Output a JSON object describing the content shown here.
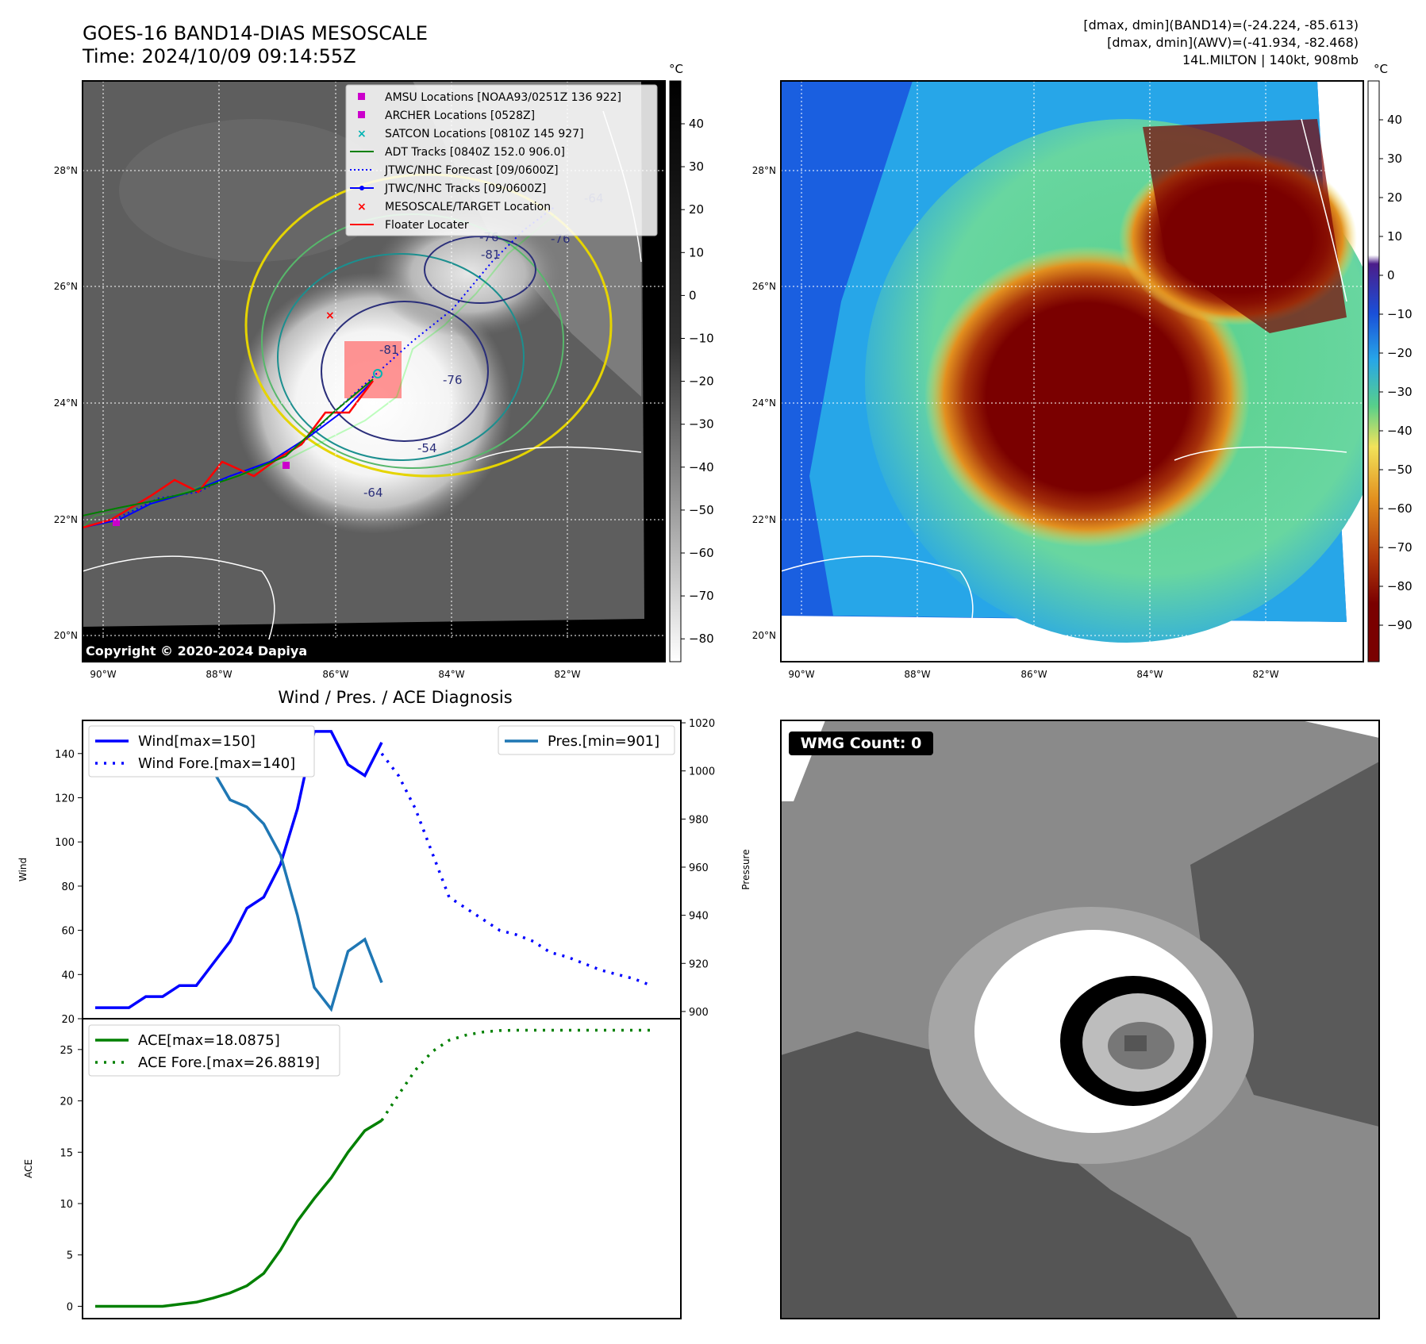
{
  "header": {
    "title_line1": "GOES-16 BAND14-DIAS MESOSCALE",
    "title_line2": "Time: 2024/10/09 09:14:55Z",
    "info_line1": "[dmax, dmin](BAND14)=(-24.224, -85.613)",
    "info_line2": "[dmax, dmin](AWV)=(-41.934, -82.468)",
    "info_line3": "14L.MILTON | 140kt, 908mb"
  },
  "map": {
    "lat_ticks": [
      "28°N",
      "26°N",
      "24°N",
      "22°N",
      "20°N"
    ],
    "lon_ticks": [
      "90°W",
      "88°W",
      "86°W",
      "84°W",
      "82°W"
    ],
    "copyright": "Copyright © 2020-2024 Dapiya",
    "contour_labels": [
      "-64",
      "-76",
      "-81",
      "-81",
      "-76",
      "-54",
      "-64",
      "-76"
    ],
    "storm_colors": {
      "ir_core": "#ffffff",
      "awv_core": "#7a0000",
      "awv_ring": "#e2901f",
      "awv_env": "#58d08a",
      "awv_edge": "#27a6e8"
    },
    "legend": [
      {
        "label": "AMSU Locations [NOAA93/0251Z 136 922]",
        "color": "#cc00cc",
        "marker": "square"
      },
      {
        "label": "ARCHER Locations [0528Z]",
        "color": "#cc00cc",
        "marker": "square"
      },
      {
        "label": "SATCON Locations [0810Z 145 927]",
        "color": "#00b3b3",
        "marker": "x"
      },
      {
        "label": "ADT Tracks [0840Z 152.0 906.0]",
        "color": "#008000",
        "marker": "line"
      },
      {
        "label": "JTWC/NHC Forecast [09/0600Z]",
        "color": "#0000ff",
        "marker": "dotted"
      },
      {
        "label": "JTWC/NHC Tracks [09/0600Z]",
        "color": "#0000ff",
        "marker": "line-dot"
      },
      {
        "label": "MESOSCALE/TARGET Location",
        "color": "#ff0000",
        "marker": "x"
      },
      {
        "label": "Floater Locater",
        "color": "#ff0000",
        "marker": "line"
      }
    ]
  },
  "colorbar_ir": {
    "unit": "°C",
    "ticks": [
      "40",
      "30",
      "20",
      "10",
      "0",
      "−10",
      "−20",
      "−30",
      "−40",
      "−50",
      "−60",
      "−70",
      "−80"
    ]
  },
  "colorbar_awv": {
    "unit": "°C",
    "ticks": [
      "40",
      "30",
      "20",
      "10",
      "0",
      "−10",
      "−20",
      "−30",
      "−40",
      "−50",
      "−60",
      "−70",
      "−80",
      "−90"
    ]
  },
  "chart_data": [
    {
      "type": "line",
      "title": "Wind / Pres. / ACE Diagnosis",
      "ylabel": "Wind",
      "ylabel_right": "Pressure",
      "ylim": [
        20,
        155
      ],
      "ylim_right": [
        897,
        1021
      ],
      "yticks": [
        "140",
        "120",
        "100",
        "80",
        "60",
        "40",
        "20"
      ],
      "yticks_right": [
        "1020",
        "1000",
        "980",
        "960",
        "940",
        "920",
        "900"
      ],
      "legend_left": [
        "Wind[max=150]",
        "Wind Fore.[max=140]"
      ],
      "legend_right": [
        "Pres.[min=901]"
      ],
      "series": [
        {
          "name": "Wind[max=150]",
          "color": "#0000ff",
          "style": "solid",
          "x": [
            0,
            1,
            2,
            3,
            4,
            5,
            6,
            7,
            8,
            9,
            10,
            11,
            12,
            13,
            14,
            15,
            16,
            17
          ],
          "values": [
            25,
            25,
            25,
            30,
            30,
            35,
            35,
            45,
            55,
            70,
            75,
            90,
            115,
            150,
            150,
            135,
            130,
            145
          ]
        },
        {
          "name": "Wind Fore.[max=140]",
          "color": "#0000ff",
          "style": "dotted",
          "x": [
            17,
            18,
            19,
            20,
            21,
            22,
            23,
            24,
            25,
            26,
            27,
            28,
            29,
            30,
            31,
            32,
            33
          ],
          "values": [
            140,
            130,
            115,
            95,
            75,
            70,
            65,
            60,
            58,
            55,
            50,
            48,
            45,
            42,
            40,
            38,
            35
          ]
        },
        {
          "name": "Pres.[min=901]",
          "color": "#1f77b4",
          "style": "solid",
          "axis": "right",
          "x": [
            0,
            1,
            2,
            3,
            4,
            5,
            6,
            7,
            8,
            9,
            10,
            11,
            12,
            13,
            14,
            15,
            16,
            17
          ],
          "values": [
            1011,
            1011,
            1011,
            1008,
            1008,
            1006,
            1005,
            1000,
            988,
            985,
            978,
            965,
            940,
            910,
            901,
            925,
            930,
            912
          ]
        }
      ]
    },
    {
      "type": "line",
      "ylabel": "ACE",
      "ylim": [
        -1.2,
        28
      ],
      "yticks": [
        "25",
        "20",
        "15",
        "10",
        "5",
        "0"
      ],
      "legend": [
        "ACE[max=18.0875]",
        "ACE Fore.[max=26.8819]"
      ],
      "series": [
        {
          "name": "ACE[max=18.0875]",
          "color": "#008000",
          "style": "solid",
          "x": [
            0,
            1,
            2,
            3,
            4,
            5,
            6,
            7,
            8,
            9,
            10,
            11,
            12,
            13,
            14,
            15,
            16,
            17
          ],
          "values": [
            0,
            0,
            0,
            0,
            0,
            0.2,
            0.4,
            0.8,
            1.3,
            2.0,
            3.2,
            5.5,
            8.3,
            10.5,
            12.5,
            15.0,
            17.1,
            18.09
          ]
        },
        {
          "name": "ACE Fore.[max=26.8819]",
          "color": "#008000",
          "style": "dotted",
          "x": [
            17,
            18,
            19,
            20,
            21,
            22,
            23,
            24,
            25,
            26,
            27,
            28,
            29,
            30,
            31,
            32,
            33
          ],
          "values": [
            18.09,
            20.6,
            23.0,
            24.8,
            25.9,
            26.4,
            26.7,
            26.85,
            26.88,
            26.88,
            26.88,
            26.88,
            26.88,
            26.88,
            26.88,
            26.88,
            26.88
          ]
        }
      ]
    }
  ],
  "wmg": {
    "label": "WMG Count: 0"
  }
}
